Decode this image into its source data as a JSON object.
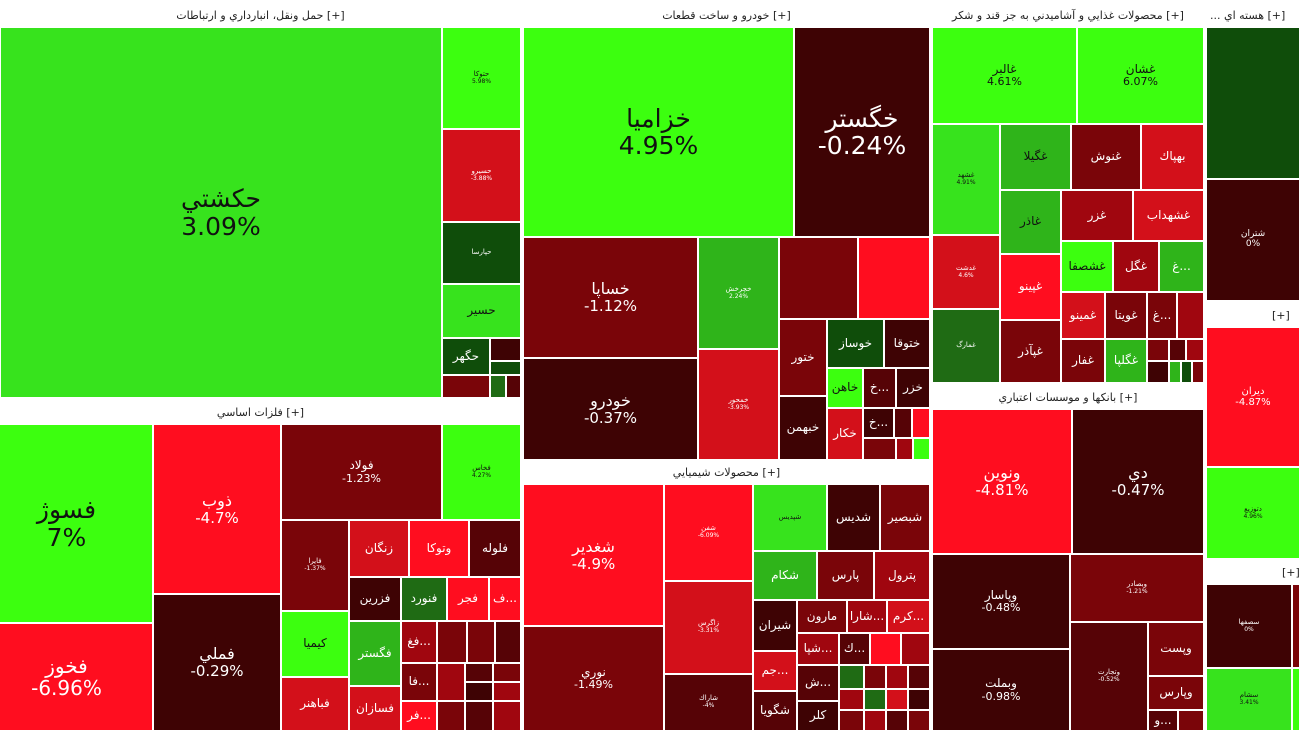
{
  "sectors": {
    "transport": {
      "title": "حمل ونقل، انبارداري و ارتباطات [+]"
    },
    "auto": {
      "title": "خودرو و ساخت قطعات [+]"
    },
    "food": {
      "title": "محصولات غذايي و آشاميدني به جز قند و شكر [+]"
    },
    "nuclear": {
      "title": "... هسته اي [+]"
    },
    "metals": {
      "title": "فلزات اساسي [+]"
    },
    "chemical": {
      "title": "محصولات شيميايي [+]"
    },
    "banks": {
      "title": "بانكها و موسسات اعتباري [+]"
    },
    "sector6": {
      "title": "[+]"
    },
    "sector7": {
      "title": "[+]"
    }
  },
  "tiles": {
    "hakashti": {
      "name": "حكشتي",
      "pct": "3.09%"
    },
    "t_small1": {
      "name": "حتوكا",
      "pct": "5.98%"
    },
    "t_small2": {
      "name": "حسيرو",
      "pct": "-3.88%"
    },
    "t_small3": {
      "name": "حپارسا",
      "pct": ""
    },
    "hasir": {
      "name": "حسير"
    },
    "hagohar": {
      "name": "حگهر"
    },
    "khazamia": {
      "name": "خزاميا",
      "pct": "4.95%"
    },
    "khgostar": {
      "name": "خگستر",
      "pct": "-0.24%"
    },
    "khsapa": {
      "name": "خساپا",
      "pct": "-1.12%"
    },
    "khodro": {
      "name": "خودرو",
      "pct": "-0.37%"
    },
    "khcharkh": {
      "name": "خچرخش",
      "pct": "2.24%"
    },
    "khmehvar": {
      "name": "خمحور",
      "pct": "-3.93%"
    },
    "khtur": {
      "name": "ختور"
    },
    "khosaz": {
      "name": "خوساز"
    },
    "khtuqa": {
      "name": "ختوقا"
    },
    "khahen": {
      "name": "خاهن"
    },
    "khzar": {
      "name": "خزر"
    },
    "khbahman": {
      "name": "خبهمن"
    },
    "khkar": {
      "name": "خكار"
    },
    "kh1": {
      "name": "خ..."
    },
    "kh2": {
      "name": "خ..."
    },
    "ghalbor": {
      "name": "غالبر",
      "pct": "4.61%"
    },
    "ghshan": {
      "name": "غشان",
      "pct": "6.07%"
    },
    "ghshahd": {
      "name": "غشهد",
      "pct": "4.91%"
    },
    "ghgila": {
      "name": "غگيلا"
    },
    "ghnosh": {
      "name": "غنوش"
    },
    "bahpak": {
      "name": "بهپاك"
    },
    "ghazar": {
      "name": "غاذر"
    },
    "ghazar2": {
      "name": "غزر"
    },
    "ghshahdab": {
      "name": "غشهداب"
    },
    "ghpino": {
      "name": "غپينو"
    },
    "ghshsafa": {
      "name": "غشصفا"
    },
    "ghgol": {
      "name": "غگل"
    },
    "ghminu": {
      "name": "غمينو"
    },
    "ghviva": {
      "name": "غويتا"
    },
    "ghpazar": {
      "name": "غپآذر"
    },
    "ghfar": {
      "name": "غفار"
    },
    "ghgala": {
      "name": "غگلپا"
    },
    "gh1": {
      "name": "غ..."
    },
    "gh2": {
      "name": "غ..."
    },
    "ghsmall1": {
      "name": "غدشت",
      "pct": "4.6%"
    },
    "ghsmall2": {
      "name": "غمارگ",
      "pct": ""
    },
    "shetran": {
      "name": "شتران",
      "pct": "0%"
    },
    "fasooz": {
      "name": "فسوژ",
      "pct": "7%"
    },
    "fakhooz": {
      "name": "فخوز",
      "pct": "-6.96%"
    },
    "zob": {
      "name": "ذوب",
      "pct": "-4.7%"
    },
    "folad": {
      "name": "فولاد",
      "pct": "-1.23%"
    },
    "famli": {
      "name": "فملي",
      "pct": "-0.29%"
    },
    "fkhas": {
      "name": "فخاس",
      "pct": "4.27%"
    },
    "fsmall": {
      "name": "فايرا",
      "pct": "-1.37%"
    },
    "zangan": {
      "name": "زنگان"
    },
    "vatuka": {
      "name": "وتوكا"
    },
    "falvale": {
      "name": "فلوله"
    },
    "fazrin": {
      "name": "فزرين"
    },
    "fanvard": {
      "name": "فنورد"
    },
    "fajr": {
      "name": "فجر"
    },
    "fa1": {
      "name": "ف..."
    },
    "kima": {
      "name": "كيميا"
    },
    "fagostar": {
      "name": "فگستر"
    },
    "fabahonar": {
      "name": "فباهنر"
    },
    "fasazan": {
      "name": "فسازان"
    },
    "fagh": {
      "name": "فغ..."
    },
    "fa2": {
      "name": "فا..."
    },
    "fa3": {
      "name": "فر..."
    },
    "shghadir": {
      "name": "شغدير",
      "pct": "-4.9%"
    },
    "nouri": {
      "name": "نوري",
      "pct": "-1.49%"
    },
    "shshaf": {
      "name": "شفن",
      "pct": "-6.09%"
    },
    "zagros": {
      "name": "زاگرس",
      "pct": "-3.31%"
    },
    "shsmall1": {
      "name": "شپديس",
      "pct": ""
    },
    "shdis": {
      "name": "شديس"
    },
    "shbasir": {
      "name": "شبصير"
    },
    "shkam": {
      "name": "شكام"
    },
    "pars": {
      "name": "پارس"
    },
    "petrol": {
      "name": "پترول"
    },
    "shiran": {
      "name": "شيران"
    },
    "marun": {
      "name": "مارون"
    },
    "shara": {
      "name": "شارا..."
    },
    "karam": {
      "name": "كرم..."
    },
    "jam": {
      "name": "جم..."
    },
    "shpa": {
      "name": "شپا..."
    },
    "k1": {
      "name": "ك..."
    },
    "sh1": {
      "name": "ش..."
    },
    "shgooya": {
      "name": "شگويا"
    },
    "kalor": {
      "name": "كلر"
    },
    "shsmall2": {
      "name": "شاراك",
      "pct": "-4%"
    },
    "vanovin": {
      "name": "ونوين",
      "pct": "-4.81%"
    },
    "di": {
      "name": "دي",
      "pct": "-0.47%"
    },
    "vbsadr": {
      "name": "وبصادر",
      "pct": "-1.21%"
    },
    "vpasar": {
      "name": "وپاسار",
      "pct": "-0.48%"
    },
    "vbmelat": {
      "name": "وبملت",
      "pct": "-0.98%"
    },
    "vtejarat": {
      "name": "وتجارت",
      "pct": "-0.52%"
    },
    "vpost": {
      "name": "وپست"
    },
    "vparsa": {
      "name": "وپارس"
    },
    "vo": {
      "name": "و..."
    },
    "diran": {
      "name": "ديران",
      "pct": "-4.87%"
    },
    "dtozie": {
      "name": "دتوزيع",
      "pct": "4.96%"
    },
    "sftehran": {
      "name": "سصفها",
      "pct": "0%"
    },
    "sasham": {
      "name": "سشام",
      "pct": "3.41%"
    }
  }
}
